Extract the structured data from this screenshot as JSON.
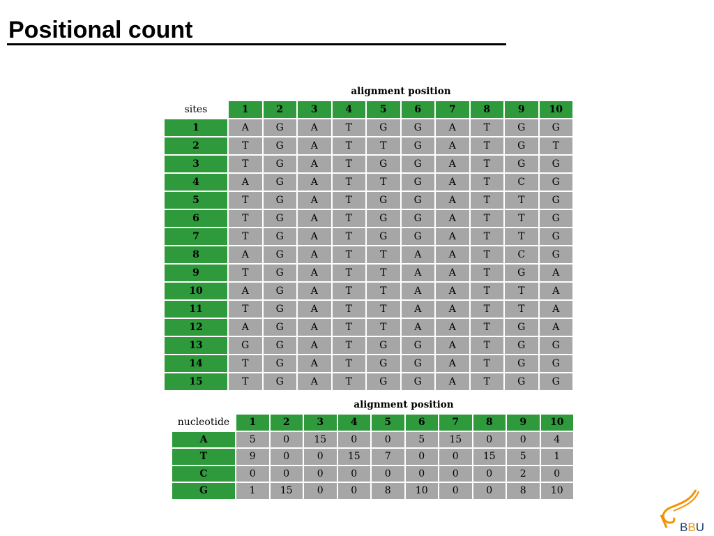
{
  "title": "Positional count",
  "alignment": {
    "caption": "alignment position",
    "corner_label": "sites",
    "positions": [
      "1",
      "2",
      "3",
      "4",
      "5",
      "6",
      "7",
      "8",
      "9",
      "10"
    ],
    "rows": [
      {
        "site": "1",
        "seq": [
          "A",
          "G",
          "A",
          "T",
          "G",
          "G",
          "A",
          "T",
          "G",
          "G"
        ]
      },
      {
        "site": "2",
        "seq": [
          "T",
          "G",
          "A",
          "T",
          "T",
          "G",
          "A",
          "T",
          "G",
          "T"
        ]
      },
      {
        "site": "3",
        "seq": [
          "T",
          "G",
          "A",
          "T",
          "G",
          "G",
          "A",
          "T",
          "G",
          "G"
        ]
      },
      {
        "site": "4",
        "seq": [
          "A",
          "G",
          "A",
          "T",
          "T",
          "G",
          "A",
          "T",
          "C",
          "G"
        ]
      },
      {
        "site": "5",
        "seq": [
          "T",
          "G",
          "A",
          "T",
          "G",
          "G",
          "A",
          "T",
          "T",
          "G"
        ]
      },
      {
        "site": "6",
        "seq": [
          "T",
          "G",
          "A",
          "T",
          "G",
          "G",
          "A",
          "T",
          "T",
          "G"
        ]
      },
      {
        "site": "7",
        "seq": [
          "T",
          "G",
          "A",
          "T",
          "G",
          "G",
          "A",
          "T",
          "T",
          "G"
        ]
      },
      {
        "site": "8",
        "seq": [
          "A",
          "G",
          "A",
          "T",
          "T",
          "A",
          "A",
          "T",
          "C",
          "G"
        ]
      },
      {
        "site": "9",
        "seq": [
          "T",
          "G",
          "A",
          "T",
          "T",
          "A",
          "A",
          "T",
          "G",
          "A"
        ]
      },
      {
        "site": "10",
        "seq": [
          "A",
          "G",
          "A",
          "T",
          "T",
          "A",
          "A",
          "T",
          "T",
          "A"
        ]
      },
      {
        "site": "11",
        "seq": [
          "T",
          "G",
          "A",
          "T",
          "T",
          "A",
          "A",
          "T",
          "T",
          "A"
        ]
      },
      {
        "site": "12",
        "seq": [
          "A",
          "G",
          "A",
          "T",
          "T",
          "A",
          "A",
          "T",
          "G",
          "A"
        ]
      },
      {
        "site": "13",
        "seq": [
          "G",
          "G",
          "A",
          "T",
          "G",
          "G",
          "A",
          "T",
          "G",
          "G"
        ]
      },
      {
        "site": "14",
        "seq": [
          "T",
          "G",
          "A",
          "T",
          "G",
          "G",
          "A",
          "T",
          "G",
          "G"
        ]
      },
      {
        "site": "15",
        "seq": [
          "T",
          "G",
          "A",
          "T",
          "G",
          "G",
          "A",
          "T",
          "G",
          "G"
        ]
      }
    ]
  },
  "counts": {
    "caption": "alignment position",
    "corner_label": "nucleotide",
    "positions": [
      "1",
      "2",
      "3",
      "4",
      "5",
      "6",
      "7",
      "8",
      "9",
      "10"
    ],
    "rows": [
      {
        "nucleotide": "A",
        "values": [
          "5",
          "0",
          "15",
          "0",
          "0",
          "5",
          "15",
          "0",
          "0",
          "4"
        ]
      },
      {
        "nucleotide": "T",
        "values": [
          "9",
          "0",
          "0",
          "15",
          "7",
          "0",
          "0",
          "15",
          "5",
          "1"
        ]
      },
      {
        "nucleotide": "C",
        "values": [
          "0",
          "0",
          "0",
          "0",
          "0",
          "0",
          "0",
          "0",
          "2",
          "0"
        ]
      },
      {
        "nucleotide": "G",
        "values": [
          "1",
          "15",
          "0",
          "0",
          "8",
          "10",
          "0",
          "0",
          "8",
          "10"
        ]
      }
    ]
  },
  "logo": {
    "text_b1": "B",
    "text_b2": "B",
    "text_u": "U",
    "accent": "#f39200",
    "brand": "#1a3a6a"
  }
}
